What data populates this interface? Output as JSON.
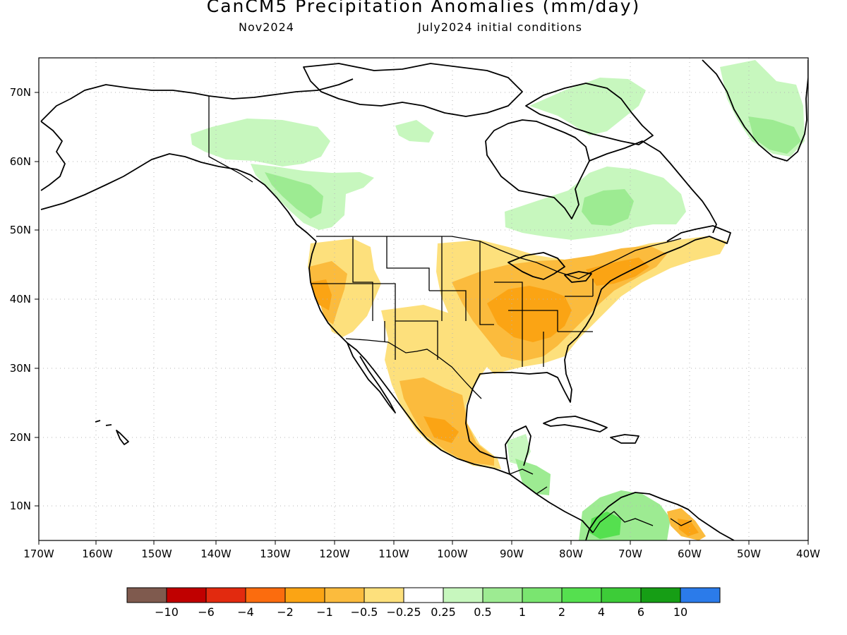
{
  "title": "CanCM5 Precipitation Anomalies (mm/day)",
  "subtitle_left": "Nov2024",
  "subtitle_right": "July2024 initial conditions",
  "axes": {
    "lon_labels": [
      "170W",
      "160W",
      "150W",
      "140W",
      "130W",
      "120W",
      "110W",
      "100W",
      "90W",
      "80W",
      "70W",
      "60W",
      "50W",
      "40W"
    ],
    "lat_labels": [
      "70N",
      "60N",
      "50N",
      "40N",
      "30N",
      "20N",
      "10N"
    ],
    "lon_range": [
      -170,
      -40
    ],
    "lat_range": [
      5,
      75
    ],
    "grid": "dotted"
  },
  "colorbar": {
    "colors": [
      "#7f5a4e",
      "#c00000",
      "#e22a0f",
      "#fb6c0e",
      "#fba414",
      "#fbbb3d",
      "#fde07c",
      "#ffffff",
      "#c7f7be",
      "#9deb92",
      "#7ae570",
      "#55e04f",
      "#3dcc38",
      "#169e15",
      "#2b7bea"
    ],
    "labels": [
      "−10",
      "−6",
      "−4",
      "−2",
      "−1",
      "−0.5",
      "−0.25",
      "0.25",
      "0.5",
      "1",
      "2",
      "4",
      "6",
      "10"
    ]
  }
}
